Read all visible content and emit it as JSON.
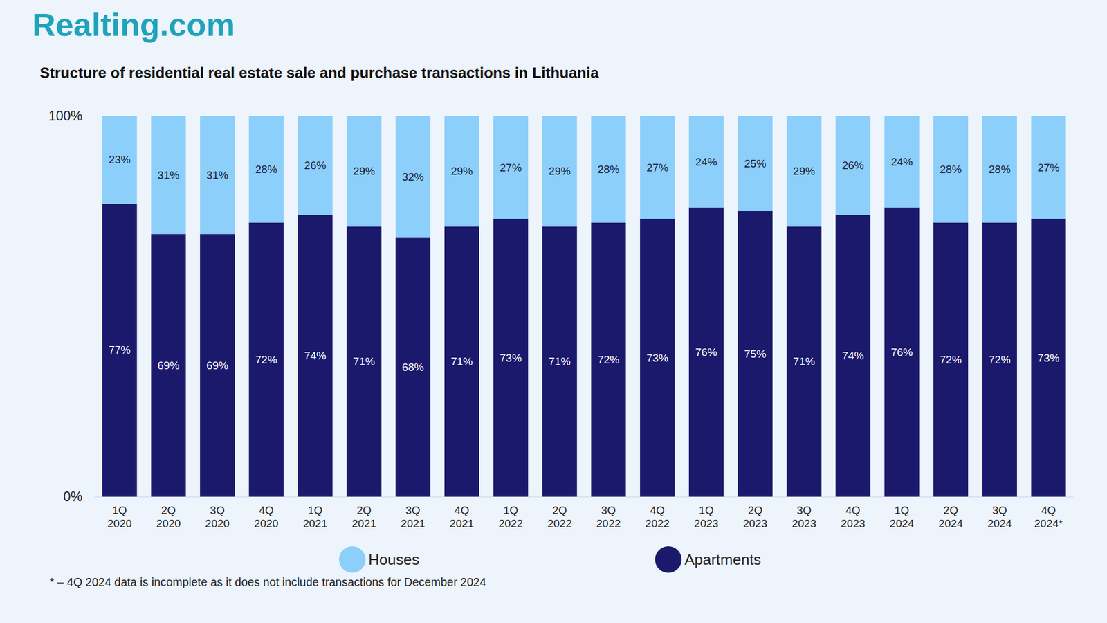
{
  "chart_data": {
    "type": "bar",
    "logo": "Realting.com",
    "title": "Structure of residential real estate sale and purchase transactions in Lithuania",
    "footnote": "* – 4Q 2024 data is incomplete as it does not include transactions for December 2024",
    "categories": [
      "1Q\n2020",
      "2Q\n2020",
      "3Q\n2020",
      "4Q\n2020",
      "1Q\n2021",
      "2Q\n2021",
      "3Q\n2021",
      "4Q\n2021",
      "1Q\n2022",
      "2Q\n2022",
      "3Q\n2022",
      "4Q\n2022",
      "1Q\n2023",
      "2Q\n2023",
      "3Q\n2023",
      "4Q\n2023",
      "1Q\n2024",
      "2Q\n2024",
      "3Q\n2024",
      "4Q\n2024*"
    ],
    "series": [
      {
        "name": "Apartments",
        "color": "#1b196b",
        "values": [
          77,
          69,
          69,
          72,
          74,
          71,
          68,
          71,
          73,
          71,
          72,
          73,
          76,
          75,
          71,
          74,
          76,
          72,
          72,
          73
        ],
        "value_labels": [
          "77%",
          "69%",
          "69%",
          "72%",
          "74%",
          "71%",
          "68%",
          "71%",
          "73%",
          "71%",
          "72%",
          "73%",
          "76%",
          "75%",
          "71%",
          "74%",
          "76%",
          "72%",
          "72%",
          "73%"
        ]
      },
      {
        "name": "Houses",
        "color": "#8ccffa",
        "values": [
          23,
          31,
          31,
          28,
          26,
          29,
          32,
          29,
          27,
          29,
          28,
          27,
          24,
          25,
          29,
          26,
          24,
          28,
          28,
          27
        ],
        "value_labels": [
          "23%",
          "31%",
          "31%",
          "28%",
          "26%",
          "29%",
          "32%",
          "29%",
          "27%",
          "29%",
          "28%",
          "27%",
          "24%",
          "25%",
          "29%",
          "26%",
          "24%",
          "28%",
          "28%",
          "27%"
        ]
      }
    ],
    "ylim": [
      0,
      100
    ],
    "yticks": [
      {
        "value": 0,
        "label": "0%"
      },
      {
        "value": 100,
        "label": "100%"
      }
    ],
    "stacked": true,
    "data_labels": true,
    "grid": false,
    "legend": "bottom"
  }
}
